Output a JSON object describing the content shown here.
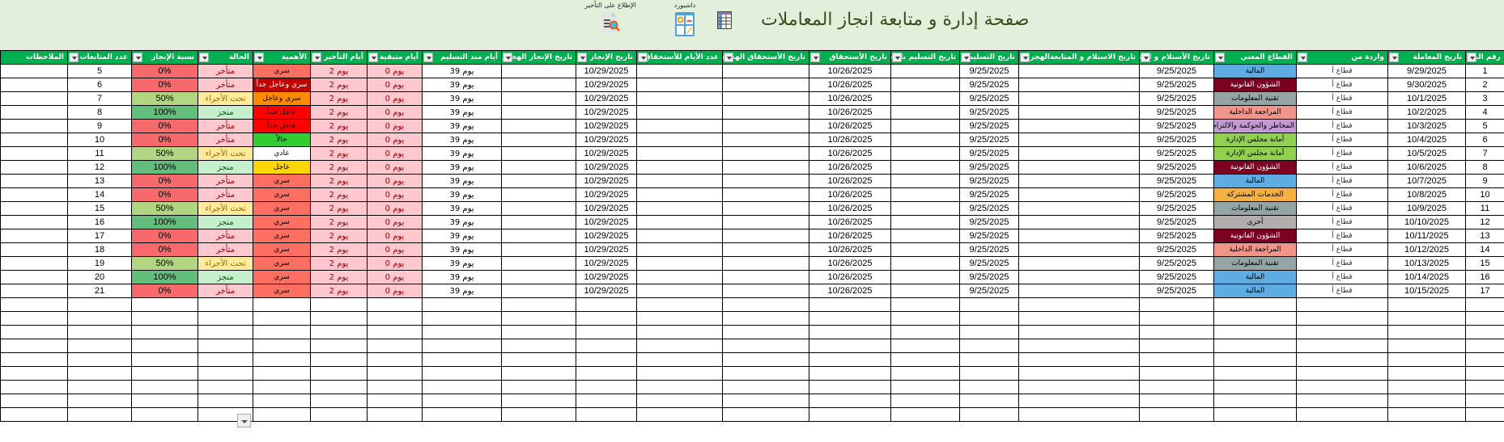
{
  "header": {
    "title": "صفحة إدارة و متابعة انجاز المعاملات",
    "dashboard_label": "داشبورد",
    "delay_report_label": "الإطلاع على التأخير"
  },
  "columns": [
    "رقم المعاملة",
    "تاريخ المعاملة",
    "واردة من",
    "القطاع المعني",
    "تاريخ الأستلام و المتابعة",
    "تاريخ الاستلام و المتابعةالهجري",
    "تاريخ التسليم",
    "تاريخ التسليم بالهجري",
    "تاريخ الأستحقاق",
    "تاريخ الأستحقاق الهجري",
    "عدد الأيام للأستحقاق",
    "تاريخ الإنجاز",
    "تاريخ الإنجاز الهجري",
    "أيام منذ التسليم",
    "أيام متبقية",
    "أيام التأخير",
    "الأهمية",
    "الحالة",
    "نسبة الإنجاز",
    "عدد المتابعات",
    "الملاحظات"
  ],
  "colors": {
    "header_bg": "#00b050",
    "sectors": {
      "المالية": "#5dade2",
      "الشؤون القانونية": "#7b0022",
      "تقنية المعلومات": "#95a5a6",
      "المراجعة الداخلية": "#f1948a",
      "المخاطر والحوكمة والالتزام": "#c39bd3",
      "أمانة مجلس الإدارة": "#92d050",
      "الخدمات المشتركة": "#f5b041",
      "أخرى": "#b3aeae"
    },
    "importance": {
      "سري": "#ff6f61",
      "سري وعاجل جداً": "#c00000",
      "سري وعاجل": "#ff8c00",
      "عاجل جداً": "#ff0000",
      "حالاً": "#33cc33",
      "عادي": "#ffffff",
      "عاجل": "#ffd700"
    },
    "status": {
      "متأخر": [
        "#ffc7ce",
        "#9c0006"
      ],
      "تحت الأجراء": [
        "#ffeb9c",
        "#9c6500"
      ],
      "منجز": [
        "#c6efce",
        "#006100"
      ]
    },
    "progress": {
      "0%": "#f8696b",
      "50%": "#b1d580",
      "100%": "#63be7b"
    }
  },
  "rows": [
    {
      "no": "1",
      "date": "9/29/2025",
      "from": "قطاع أ",
      "sector": "المالية",
      "received": "9/25/2025",
      "delivery": "9/25/2025",
      "due": "10/26/2025",
      "done": "10/29/2025",
      "since": "يوم 39",
      "remaining": "يوم 0",
      "delay": "يوم 2",
      "importance": "سري",
      "status": "متأخر",
      "progress": "0%",
      "followups": "5"
    },
    {
      "no": "2",
      "date": "9/30/2025",
      "from": "قطاع أ",
      "sector": "الشؤون القانونية",
      "received": "9/25/2025",
      "delivery": "9/25/2025",
      "due": "10/26/2025",
      "done": "10/29/2025",
      "since": "يوم 39",
      "remaining": "يوم 0",
      "delay": "يوم 2",
      "importance": "سري وعاجل جداً",
      "status": "متأخر",
      "progress": "0%",
      "followups": "6"
    },
    {
      "no": "3",
      "date": "10/1/2025",
      "from": "قطاع أ",
      "sector": "تقنية المعلومات",
      "received": "9/25/2025",
      "delivery": "9/25/2025",
      "due": "10/26/2025",
      "done": "10/29/2025",
      "since": "يوم 39",
      "remaining": "يوم 0",
      "delay": "يوم 2",
      "importance": "سري وعاجل",
      "status": "تحت الأجراء",
      "progress": "50%",
      "followups": "7"
    },
    {
      "no": "4",
      "date": "10/2/2025",
      "from": "قطاع أ",
      "sector": "المراجعة الداخلية",
      "received": "9/25/2025",
      "delivery": "9/25/2025",
      "due": "10/26/2025",
      "done": "10/29/2025",
      "since": "يوم 39",
      "remaining": "يوم 0",
      "delay": "يوم 2",
      "importance": "عاجل جداً",
      "status": "منجز",
      "progress": "100%",
      "followups": "8"
    },
    {
      "no": "5",
      "date": "10/3/2025",
      "from": "قطاع أ",
      "sector": "المخاطر والحوكمة والالتزام",
      "received": "9/25/2025",
      "delivery": "9/25/2025",
      "due": "10/26/2025",
      "done": "10/29/2025",
      "since": "يوم 39",
      "remaining": "يوم 0",
      "delay": "يوم 2",
      "importance": "عاجل جداً",
      "status": "متأخر",
      "progress": "0%",
      "followups": "9"
    },
    {
      "no": "6",
      "date": "10/4/2025",
      "from": "قطاع أ",
      "sector": "أمانة مجلس الإدارة",
      "received": "9/25/2025",
      "delivery": "9/25/2025",
      "due": "10/26/2025",
      "done": "10/29/2025",
      "since": "يوم 39",
      "remaining": "يوم 0",
      "delay": "يوم 2",
      "importance": "حالاً",
      "status": "متأخر",
      "progress": "0%",
      "followups": "10"
    },
    {
      "no": "7",
      "date": "10/5/2025",
      "from": "قطاع أ",
      "sector": "أمانة مجلس الإدارة",
      "received": "9/25/2025",
      "delivery": "9/25/2025",
      "due": "10/26/2025",
      "done": "10/29/2025",
      "since": "يوم 39",
      "remaining": "يوم 0",
      "delay": "يوم 2",
      "importance": "عادي",
      "status": "تحت الأجراء",
      "progress": "50%",
      "followups": "11"
    },
    {
      "no": "8",
      "date": "10/6/2025",
      "from": "قطاع أ",
      "sector": "الشؤون القانونية",
      "received": "9/25/2025",
      "delivery": "9/25/2025",
      "due": "10/26/2025",
      "done": "10/29/2025",
      "since": "يوم 39",
      "remaining": "يوم 0",
      "delay": "يوم 2",
      "importance": "عاجل",
      "status": "منجز",
      "progress": "100%",
      "followups": "12"
    },
    {
      "no": "9",
      "date": "10/7/2025",
      "from": "قطاع أ",
      "sector": "المالية",
      "received": "9/25/2025",
      "delivery": "9/25/2025",
      "due": "10/26/2025",
      "done": "10/29/2025",
      "since": "يوم 39",
      "remaining": "يوم 0",
      "delay": "يوم 2",
      "importance": "سري",
      "status": "متأخر",
      "progress": "0%",
      "followups": "13"
    },
    {
      "no": "10",
      "date": "10/8/2025",
      "from": "قطاع أ",
      "sector": "الخدمات المشتركة",
      "received": "9/25/2025",
      "delivery": "9/25/2025",
      "due": "10/26/2025",
      "done": "10/29/2025",
      "since": "يوم 39",
      "remaining": "يوم 0",
      "delay": "يوم 2",
      "importance": "سري",
      "status": "متأخر",
      "progress": "0%",
      "followups": "14"
    },
    {
      "no": "11",
      "date": "10/9/2025",
      "from": "قطاع أ",
      "sector": "تقنية المعلومات",
      "received": "9/25/2025",
      "delivery": "9/25/2025",
      "due": "10/26/2025",
      "done": "10/29/2025",
      "since": "يوم 39",
      "remaining": "يوم 0",
      "delay": "يوم 2",
      "importance": "سري",
      "status": "تحت الأجراء",
      "progress": "50%",
      "followups": "15"
    },
    {
      "no": "12",
      "date": "10/10/2025",
      "from": "قطاع أ",
      "sector": "أخرى",
      "received": "9/25/2025",
      "delivery": "9/25/2025",
      "due": "10/26/2025",
      "done": "10/29/2025",
      "since": "يوم 39",
      "remaining": "يوم 0",
      "delay": "يوم 2",
      "importance": "سري",
      "status": "منجز",
      "progress": "100%",
      "followups": "16"
    },
    {
      "no": "13",
      "date": "10/11/2025",
      "from": "قطاع أ",
      "sector": "الشؤون القانونية",
      "received": "9/25/2025",
      "delivery": "9/25/2025",
      "due": "10/26/2025",
      "done": "10/29/2025",
      "since": "يوم 39",
      "remaining": "يوم 0",
      "delay": "يوم 2",
      "importance": "سري",
      "status": "متأخر",
      "progress": "0%",
      "followups": "17"
    },
    {
      "no": "14",
      "date": "10/12/2025",
      "from": "قطاع أ",
      "sector": "المراجعة الداخلية",
      "received": "9/25/2025",
      "delivery": "9/25/2025",
      "due": "10/26/2025",
      "done": "10/29/2025",
      "since": "يوم 39",
      "remaining": "يوم 0",
      "delay": "يوم 2",
      "importance": "سري",
      "status": "متأخر",
      "progress": "0%",
      "followups": "18"
    },
    {
      "no": "15",
      "date": "10/13/2025",
      "from": "قطاع أ",
      "sector": "تقنية المعلومات",
      "received": "9/25/2025",
      "delivery": "9/25/2025",
      "due": "10/26/2025",
      "done": "10/29/2025",
      "since": "يوم 39",
      "remaining": "يوم 0",
      "delay": "يوم 2",
      "importance": "سري",
      "status": "تحت الأجراء",
      "progress": "50%",
      "followups": "19"
    },
    {
      "no": "16",
      "date": "10/14/2025",
      "from": "قطاع أ",
      "sector": "المالية",
      "received": "9/25/2025",
      "delivery": "9/25/2025",
      "due": "10/26/2025",
      "done": "10/29/2025",
      "since": "يوم 39",
      "remaining": "يوم 0",
      "delay": "يوم 2",
      "importance": "سري",
      "status": "منجز",
      "progress": "100%",
      "followups": "20"
    },
    {
      "no": "17",
      "date": "10/15/2025",
      "from": "قطاع أ",
      "sector": "المالية",
      "received": "9/25/2025",
      "delivery": "9/25/2025",
      "due": "10/26/2025",
      "done": "10/29/2025",
      "since": "يوم 39",
      "remaining": "يوم 0",
      "delay": "يوم 2",
      "importance": "سري",
      "status": "متأخر",
      "progress": "0%",
      "followups": "21"
    }
  ]
}
